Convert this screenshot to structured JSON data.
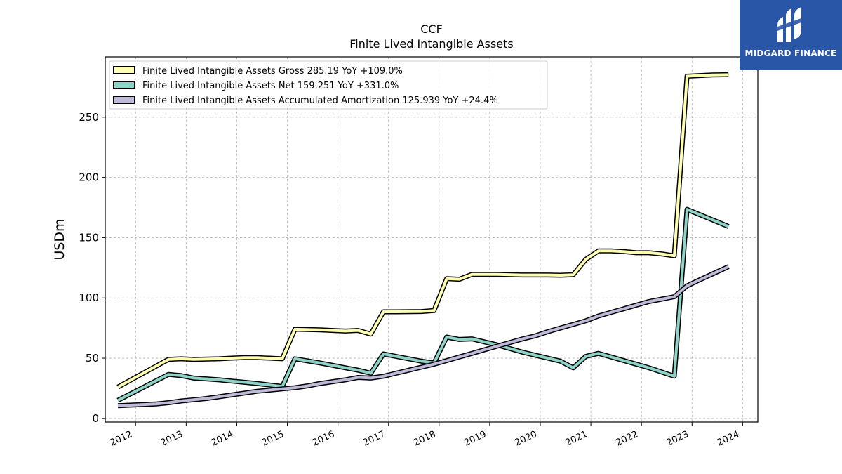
{
  "logo": {
    "text": "MIDGARD FINANCE",
    "bg_color": "#2a56a8"
  },
  "chart_data": {
    "type": "line",
    "title": "CCF",
    "subtitle": "Finite Lived Intangible Assets",
    "xlabel": "",
    "ylabel": "USDm",
    "xlim": [
      2011.4,
      2024.3
    ],
    "ylim": [
      -3,
      300
    ],
    "x_ticks": [
      2012,
      2013,
      2014,
      2015,
      2016,
      2017,
      2018,
      2019,
      2020,
      2021,
      2022,
      2023,
      2024
    ],
    "y_ticks": [
      0,
      50,
      100,
      150,
      200,
      250
    ],
    "grid": true,
    "legend_position": "top-left",
    "series": [
      {
        "name": "Finite Lived Intangible Assets Gross  285.19 YoY +109.0%",
        "color": "#ffffb3",
        "x": [
          2011.65,
          2012.65,
          2012.9,
          2013.15,
          2013.65,
          2013.9,
          2014.15,
          2014.4,
          2014.9,
          2015.15,
          2015.65,
          2015.9,
          2016.15,
          2016.4,
          2016.65,
          2016.9,
          2017.15,
          2017.65,
          2017.9,
          2018.15,
          2018.4,
          2018.65,
          2018.9,
          2019.15,
          2019.65,
          2019.9,
          2020.15,
          2020.4,
          2020.65,
          2020.9,
          2021.15,
          2021.4,
          2021.65,
          2021.9,
          2022.15,
          2022.4,
          2022.65,
          2022.9,
          2023.15,
          2023.4,
          2023.72
        ],
        "y": [
          26,
          49,
          49.5,
          49,
          49.5,
          50,
          50.5,
          50.5,
          49.5,
          74,
          73.5,
          73,
          72.5,
          73,
          70,
          88.5,
          88.5,
          88.7,
          89.5,
          116,
          115.5,
          119.5,
          119.5,
          119.5,
          119,
          119,
          119,
          118.8,
          119.2,
          132,
          139,
          139,
          138.5,
          137.5,
          137.5,
          136.5,
          135,
          284,
          284.5,
          285,
          285.19
        ]
      },
      {
        "name": "Finite Lived Intangible Assets Net  159.251 YoY +331.0%",
        "color": "#8dd3c7",
        "x": [
          2011.65,
          2012.65,
          2012.9,
          2013.15,
          2013.65,
          2013.9,
          2014.15,
          2014.4,
          2014.9,
          2015.15,
          2015.65,
          2015.9,
          2016.15,
          2016.4,
          2016.65,
          2016.9,
          2017.15,
          2017.65,
          2017.9,
          2018.15,
          2018.4,
          2018.65,
          2018.9,
          2019.15,
          2019.65,
          2019.9,
          2020.15,
          2020.4,
          2020.65,
          2020.9,
          2021.15,
          2021.4,
          2021.65,
          2021.9,
          2022.15,
          2022.4,
          2022.65,
          2022.9,
          2023.72
        ],
        "y": [
          15,
          36.5,
          35.5,
          33.5,
          32,
          31,
          30,
          29,
          26.5,
          49.5,
          46,
          44,
          42,
          40,
          37.5,
          53.5,
          51.5,
          47.5,
          46,
          67.5,
          65.5,
          66,
          63.5,
          61,
          55,
          52.5,
          50,
          47.5,
          42,
          51.5,
          54,
          51,
          48,
          45,
          42,
          38.5,
          35,
          173.5,
          159.251
        ]
      },
      {
        "name": "Finite Lived Intangible Assets Accumulated Amortization  125.939 YoY +24.4%",
        "color": "#bebada",
        "x": [
          2011.65,
          2012.15,
          2012.4,
          2012.65,
          2012.9,
          2013.15,
          2013.4,
          2013.65,
          2013.9,
          2014.15,
          2014.4,
          2014.65,
          2014.9,
          2015.15,
          2015.4,
          2015.65,
          2015.9,
          2016.15,
          2016.4,
          2016.65,
          2016.9,
          2017.15,
          2017.4,
          2017.65,
          2017.9,
          2018.15,
          2018.4,
          2018.65,
          2018.9,
          2019.15,
          2019.4,
          2019.65,
          2019.9,
          2020.15,
          2020.4,
          2020.65,
          2020.9,
          2021.15,
          2021.4,
          2021.65,
          2021.9,
          2022.15,
          2022.4,
          2022.65,
          2022.9,
          2023.15,
          2023.72
        ],
        "y": [
          10.5,
          11.5,
          12,
          13,
          14.5,
          15.5,
          16.5,
          18,
          19.5,
          21,
          22.5,
          23.5,
          24.5,
          25.5,
          27,
          29,
          30.5,
          32,
          34,
          33.5,
          35,
          37.5,
          40,
          42.5,
          45,
          48,
          51,
          54,
          57,
          60,
          63,
          66,
          68.5,
          72,
          75,
          78,
          81,
          85,
          88,
          91,
          94,
          97,
          99,
          101,
          110,
          115,
          125.939
        ]
      }
    ]
  }
}
